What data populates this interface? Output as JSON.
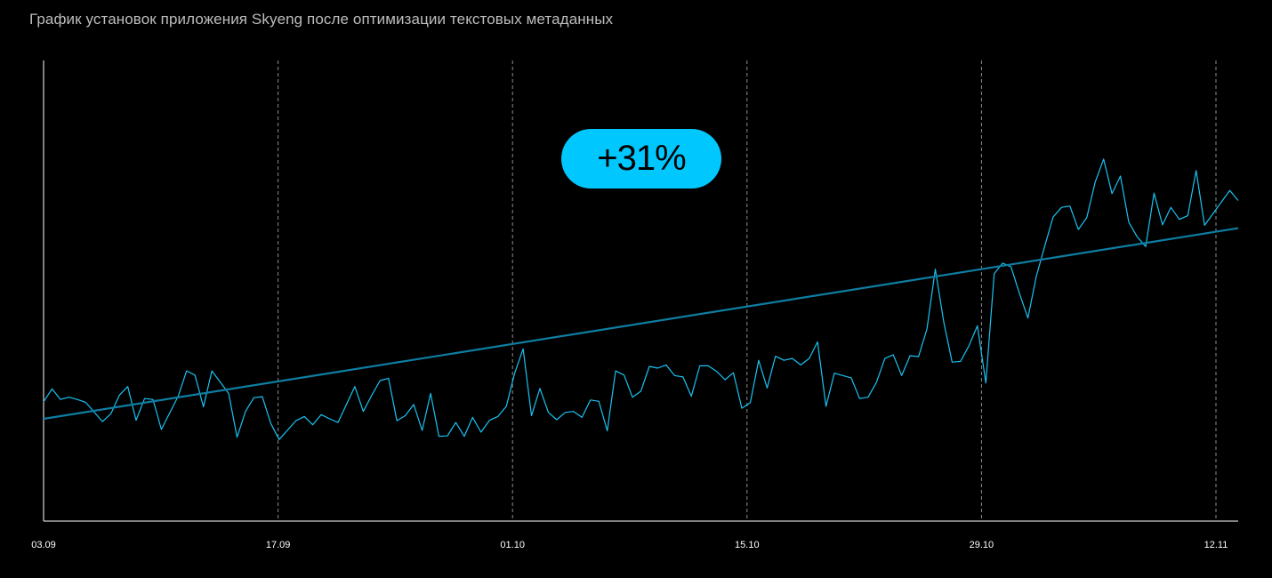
{
  "chart_data": {
    "type": "line",
    "title": "График установок приложения Skyeng после оптимизации текстовых метаданных",
    "x_ticks": [
      "03.09",
      "17.09",
      "01.10",
      "15.10",
      "29.10",
      "12.11"
    ],
    "x_range_days": [
      0,
      71
    ],
    "y_range": [
      0,
      100
    ],
    "grid": "vertical-dashed",
    "annotation": "+31%",
    "series": [
      {
        "kind": "daily",
        "color": "#19c3f2",
        "points": [
          [
            0.0,
            25.9
          ],
          [
            0.5,
            28.7
          ],
          [
            1.0,
            26.4
          ],
          [
            1.5,
            26.9
          ],
          [
            2.0,
            26.4
          ],
          [
            2.5,
            25.8
          ],
          [
            3.5,
            21.6
          ],
          [
            4.0,
            23.3
          ],
          [
            4.5,
            27.3
          ],
          [
            5.0,
            29.2
          ],
          [
            5.5,
            21.9
          ],
          [
            6.0,
            26.6
          ],
          [
            6.5,
            26.4
          ],
          [
            7.0,
            19.9
          ],
          [
            8.0,
            27.1
          ],
          [
            8.5,
            32.6
          ],
          [
            9.0,
            31.7
          ],
          [
            9.5,
            24.8
          ],
          [
            10.0,
            32.6
          ],
          [
            11.0,
            27.7
          ],
          [
            11.5,
            18.2
          ],
          [
            12.0,
            23.8
          ],
          [
            12.5,
            26.8
          ],
          [
            13.0,
            27.0
          ],
          [
            13.5,
            21.2
          ],
          [
            14.0,
            17.7
          ],
          [
            15.0,
            21.8
          ],
          [
            15.5,
            22.7
          ],
          [
            16.0,
            20.9
          ],
          [
            16.5,
            23.1
          ],
          [
            17.0,
            22.2
          ],
          [
            17.5,
            21.4
          ],
          [
            18.5,
            29.2
          ],
          [
            19.0,
            23.8
          ],
          [
            19.5,
            27.3
          ],
          [
            20.0,
            30.5
          ],
          [
            20.5,
            31.0
          ],
          [
            21.0,
            21.8
          ],
          [
            21.5,
            22.9
          ],
          [
            22.0,
            25.3
          ],
          [
            22.5,
            19.7
          ],
          [
            23.0,
            27.7
          ],
          [
            23.5,
            18.4
          ],
          [
            24.0,
            18.5
          ],
          [
            24.5,
            21.4
          ],
          [
            25.0,
            18.4
          ],
          [
            25.5,
            22.5
          ],
          [
            26.0,
            19.3
          ],
          [
            26.5,
            21.9
          ],
          [
            27.0,
            22.7
          ],
          [
            27.5,
            24.9
          ],
          [
            28.0,
            32.1
          ],
          [
            28.5,
            37.4
          ],
          [
            29.0,
            22.9
          ],
          [
            29.5,
            28.8
          ],
          [
            30.0,
            23.6
          ],
          [
            30.5,
            22.0
          ],
          [
            31.0,
            23.6
          ],
          [
            31.5,
            23.8
          ],
          [
            32.0,
            22.5
          ],
          [
            32.5,
            26.3
          ],
          [
            33.0,
            26.0
          ],
          [
            33.5,
            19.6
          ],
          [
            34.0,
            32.6
          ],
          [
            34.5,
            31.7
          ],
          [
            35.0,
            26.9
          ],
          [
            35.5,
            28.2
          ],
          [
            36.0,
            33.6
          ],
          [
            36.5,
            33.2
          ],
          [
            37.0,
            33.9
          ],
          [
            37.5,
            31.6
          ],
          [
            38.0,
            31.3
          ],
          [
            38.5,
            27.1
          ],
          [
            39.0,
            33.7
          ],
          [
            39.5,
            33.7
          ],
          [
            40.0,
            32.5
          ],
          [
            40.5,
            30.7
          ],
          [
            41.0,
            32.2
          ],
          [
            41.5,
            24.5
          ],
          [
            42.0,
            25.7
          ],
          [
            42.5,
            34.9
          ],
          [
            43.0,
            28.9
          ],
          [
            43.5,
            35.8
          ],
          [
            44.0,
            34.9
          ],
          [
            44.5,
            35.3
          ],
          [
            45.0,
            33.9
          ],
          [
            45.5,
            35.3
          ],
          [
            46.0,
            38.9
          ],
          [
            46.5,
            24.9
          ],
          [
            47.0,
            32.1
          ],
          [
            48.0,
            31.1
          ],
          [
            48.5,
            26.6
          ],
          [
            49.0,
            26.9
          ],
          [
            49.5,
            30.1
          ],
          [
            50.0,
            35.3
          ],
          [
            50.5,
            36.1
          ],
          [
            51.0,
            31.6
          ],
          [
            51.5,
            35.9
          ],
          [
            52.0,
            35.7
          ],
          [
            52.5,
            41.7
          ],
          [
            53.0,
            54.7
          ],
          [
            53.5,
            43.2
          ],
          [
            54.0,
            34.5
          ],
          [
            54.5,
            34.7
          ],
          [
            55.0,
            38.1
          ],
          [
            55.5,
            42.4
          ],
          [
            56.0,
            30.0
          ],
          [
            56.5,
            53.7
          ],
          [
            57.0,
            56.0
          ],
          [
            57.5,
            55.2
          ],
          [
            58.0,
            49.4
          ],
          [
            58.5,
            44.1
          ],
          [
            59.0,
            53.1
          ],
          [
            59.5,
            59.7
          ],
          [
            60.0,
            66.0
          ],
          [
            60.5,
            68.1
          ],
          [
            61.0,
            68.4
          ],
          [
            61.5,
            63.3
          ],
          [
            62.0,
            65.9
          ],
          [
            62.5,
            73.6
          ],
          [
            63.0,
            78.6
          ],
          [
            63.5,
            71.1
          ],
          [
            64.0,
            74.9
          ],
          [
            64.5,
            64.9
          ],
          [
            65.0,
            61.7
          ],
          [
            65.5,
            59.6
          ],
          [
            66.0,
            71.2
          ],
          [
            66.5,
            64.3
          ],
          [
            67.0,
            68.1
          ],
          [
            67.5,
            65.5
          ],
          [
            68.0,
            66.3
          ],
          [
            68.5,
            76.1
          ],
          [
            69.0,
            64.2
          ],
          [
            70.5,
            71.8
          ],
          [
            71.0,
            69.6
          ]
        ]
      },
      {
        "kind": "trend",
        "color": "#0e7ea3",
        "points": [
          [
            0.0,
            22.2
          ],
          [
            71.0,
            63.6
          ]
        ]
      }
    ]
  }
}
